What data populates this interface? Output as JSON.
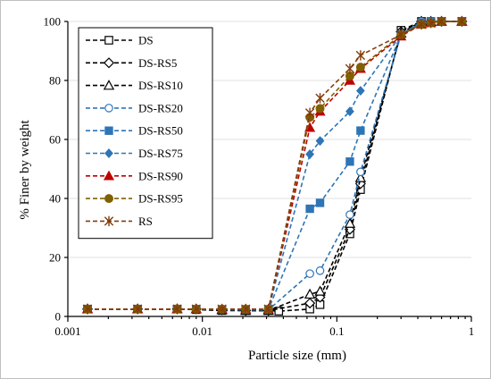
{
  "chart_data": {
    "type": "line",
    "xlabel": "Particle size (mm)",
    "ylabel": "% Finer by weight",
    "xscale": "log",
    "xlim": [
      0.001,
      1
    ],
    "ylim": [
      0,
      100
    ],
    "xticks": [
      0.001,
      0.01,
      0.1,
      1
    ],
    "xtick_labels": [
      "0.001",
      "0.01",
      "0.1",
      "1"
    ],
    "yticks": [
      0,
      20,
      40,
      60,
      80,
      100
    ],
    "grid": "horizontal",
    "legend_position": "upper-left",
    "series": [
      {
        "name": "DS",
        "color": "#000000",
        "marker": "square-open",
        "x": [
          0.0014,
          0.0033,
          0.0065,
          0.009,
          0.014,
          0.021,
          0.031,
          0.037,
          0.063,
          0.075,
          0.125,
          0.15,
          0.3,
          0.425,
          0.5,
          0.6,
          0.85
        ],
        "y": [
          2.5,
          2.5,
          2.5,
          2.3,
          2.0,
          2.0,
          2.0,
          1.8,
          2.5,
          4.0,
          28.0,
          43.0,
          97.0,
          100,
          100,
          100,
          100
        ]
      },
      {
        "name": "DS-RS5",
        "color": "#000000",
        "marker": "diamond-open",
        "x": [
          0.0014,
          0.0033,
          0.0065,
          0.009,
          0.014,
          0.021,
          0.031,
          0.063,
          0.075,
          0.125,
          0.15,
          0.3,
          0.425,
          0.5,
          0.6,
          0.85
        ],
        "y": [
          2.5,
          2.5,
          2.5,
          2.5,
          2.2,
          2.0,
          2.0,
          4.5,
          6.5,
          29.5,
          45.0,
          96.5,
          100,
          100,
          100,
          100
        ]
      },
      {
        "name": "DS-RS10",
        "color": "#000000",
        "marker": "triangle-open",
        "x": [
          0.0014,
          0.0033,
          0.0065,
          0.009,
          0.014,
          0.021,
          0.031,
          0.063,
          0.075,
          0.125,
          0.15,
          0.3,
          0.425,
          0.5,
          0.6,
          0.85
        ],
        "y": [
          2.5,
          2.5,
          2.5,
          2.5,
          2.2,
          2.0,
          2.0,
          7.5,
          8.5,
          31.5,
          47.0,
          96.0,
          100,
          100,
          100,
          100
        ]
      },
      {
        "name": "DS-RS20",
        "color": "#2e75b6",
        "marker": "circle-open",
        "x": [
          0.0014,
          0.0033,
          0.0065,
          0.009,
          0.014,
          0.021,
          0.031,
          0.063,
          0.075,
          0.125,
          0.15,
          0.3,
          0.425,
          0.5,
          0.6,
          0.85
        ],
        "y": [
          2.5,
          2.5,
          2.5,
          2.5,
          2.3,
          2.2,
          2.2,
          14.5,
          15.5,
          34.5,
          49.0,
          95.5,
          100,
          100,
          100,
          100
        ]
      },
      {
        "name": "DS-RS50",
        "color": "#2e75b6",
        "marker": "square-filled",
        "x": [
          0.0014,
          0.0033,
          0.0065,
          0.009,
          0.014,
          0.021,
          0.031,
          0.063,
          0.075,
          0.125,
          0.15,
          0.3,
          0.425,
          0.5,
          0.6,
          0.85
        ],
        "y": [
          2.5,
          2.5,
          2.5,
          2.5,
          2.4,
          2.4,
          2.4,
          36.5,
          38.5,
          52.5,
          63.0,
          95.5,
          99.5,
          100,
          100,
          100
        ]
      },
      {
        "name": "DS-RS75",
        "color": "#2e75b6",
        "marker": "diamond-filled",
        "x": [
          0.0014,
          0.0033,
          0.0065,
          0.009,
          0.014,
          0.021,
          0.031,
          0.063,
          0.075,
          0.125,
          0.15,
          0.3,
          0.425,
          0.5,
          0.6,
          0.85
        ],
        "y": [
          2.5,
          2.5,
          2.5,
          2.5,
          2.5,
          2.5,
          2.5,
          55.0,
          59.5,
          69.5,
          76.5,
          95.5,
          99.5,
          100,
          100,
          100
        ]
      },
      {
        "name": "DS-RS90",
        "color": "#c00000",
        "marker": "triangle-filled",
        "x": [
          0.0014,
          0.0033,
          0.0065,
          0.009,
          0.014,
          0.021,
          0.031,
          0.063,
          0.075,
          0.125,
          0.15,
          0.3,
          0.425,
          0.5,
          0.6,
          0.85
        ],
        "y": [
          2.5,
          2.5,
          2.5,
          2.5,
          2.5,
          2.5,
          2.5,
          64.0,
          69.5,
          80.0,
          84.0,
          95.0,
          99.0,
          99.5,
          100,
          100
        ]
      },
      {
        "name": "DS-RS95",
        "color": "#806000",
        "marker": "circle-filled",
        "x": [
          0.0014,
          0.0033,
          0.0065,
          0.009,
          0.014,
          0.021,
          0.031,
          0.063,
          0.075,
          0.125,
          0.15,
          0.3,
          0.425,
          0.5,
          0.6,
          0.85
        ],
        "y": [
          2.5,
          2.5,
          2.5,
          2.5,
          2.5,
          2.5,
          2.5,
          67.5,
          70.5,
          81.5,
          84.5,
          95.5,
          99.0,
          99.5,
          100,
          100
        ]
      },
      {
        "name": "RS",
        "color": "#843c0c",
        "marker": "asterisk",
        "x": [
          0.0014,
          0.0033,
          0.0065,
          0.009,
          0.014,
          0.021,
          0.031,
          0.063,
          0.075,
          0.125,
          0.15,
          0.3,
          0.425,
          0.5,
          0.6,
          0.85
        ],
        "y": [
          2.5,
          2.5,
          2.5,
          2.5,
          2.5,
          2.5,
          2.5,
          69.0,
          74.0,
          84.0,
          88.5,
          95.5,
          99.0,
          99.5,
          100,
          100
        ]
      }
    ]
  }
}
